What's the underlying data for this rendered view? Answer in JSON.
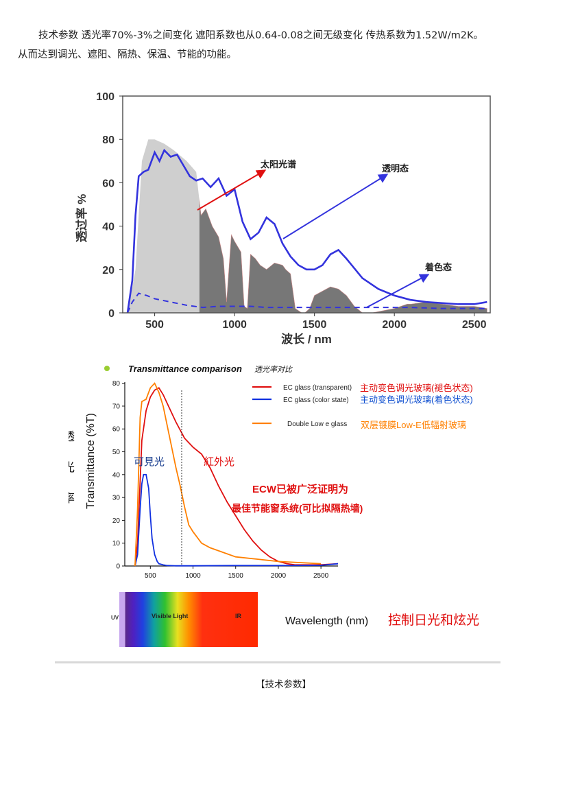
{
  "intro": {
    "line1": "技术参数 透光率70%-3%之间变化 遮阳系数也从0.64-0.08之间无级变化 传热系数为1.52W/m2K。",
    "line2": "从而达到调光、遮阳、隔热、保温、节能的功能。"
  },
  "chart_data": [
    {
      "type": "line",
      "xlabel": "波长 / nm",
      "ylabel": "透过率 %",
      "xlim": [
        300,
        2600
      ],
      "ylim": [
        0,
        100
      ],
      "x_ticks": [
        "500",
        "1000",
        "1500",
        "2000",
        "2500"
      ],
      "y_ticks": [
        "0",
        "20",
        "40",
        "60",
        "80",
        "100"
      ],
      "annotations": [
        "太阳光谱",
        "透明态",
        "着色态"
      ],
      "series": [
        {
          "name": "透明态",
          "color": "#3333dd",
          "x": [
            330,
            360,
            380,
            400,
            430,
            460,
            500,
            530,
            560,
            600,
            640,
            680,
            720,
            760,
            800,
            850,
            900,
            950,
            1000,
            1050,
            1100,
            1150,
            1200,
            1250,
            1300,
            1350,
            1400,
            1450,
            1500,
            1550,
            1600,
            1650,
            1700,
            1800,
            1900,
            2000,
            2100,
            2200,
            2300,
            2400,
            2500,
            2580
          ],
          "y": [
            0,
            15,
            45,
            63,
            65,
            66,
            74,
            70,
            75,
            72,
            73,
            68,
            63,
            61,
            62,
            58,
            62,
            54,
            57,
            42,
            34,
            37,
            44,
            41,
            32,
            26,
            22,
            20,
            20,
            22,
            27,
            29,
            25,
            16,
            11,
            8,
            6,
            5,
            4.5,
            4,
            4,
            5
          ]
        },
        {
          "name": "着色态",
          "color": "#3333dd",
          "x": [
            330,
            360,
            400,
            450,
            500,
            600,
            700,
            800,
            900,
            1000,
            1100,
            1200,
            1300,
            1500,
            1700,
            1900,
            2100,
            2300,
            2580
          ],
          "y": [
            0,
            5,
            9,
            8,
            6.5,
            5,
            3.5,
            2.5,
            3,
            3,
            3,
            2.5,
            2.5,
            2.5,
            2.5,
            2.5,
            2.5,
            2,
            2
          ]
        },
        {
          "name": "太阳光谱",
          "color": "#999999",
          "x": [
            330,
            380,
            420,
            460,
            500,
            560,
            620,
            700,
            760,
            790,
            820,
            860,
            900,
            930,
            950,
            980,
            1000,
            1040,
            1060,
            1080,
            1100,
            1130,
            1160,
            1200,
            1250,
            1300,
            1320,
            1350,
            1380,
            1420,
            1440,
            1470,
            1500,
            1550,
            1600,
            1650,
            1700,
            1750,
            1800,
            1860,
            2000,
            2040,
            2080,
            2100,
            2200,
            2300,
            2400,
            2500,
            2580
          ],
          "y": [
            0,
            20,
            70,
            80,
            80,
            78,
            75,
            70,
            65,
            45,
            48,
            40,
            35,
            25,
            5,
            36,
            33,
            28,
            3,
            2,
            27,
            25,
            22,
            20,
            23,
            22,
            20,
            18,
            2,
            0,
            0,
            2,
            8,
            10,
            12,
            11,
            8,
            3,
            0,
            0,
            2,
            3,
            4,
            4,
            5,
            4,
            3,
            3,
            2
          ]
        }
      ]
    },
    {
      "type": "line",
      "title": "Transmittance comparison",
      "title_cn": "透光率对比",
      "xlabel": "Wavelength (nm)",
      "ylabel": "Transmittance (%T)",
      "ylabel_cn": [
        "透",
        "光",
        "率"
      ],
      "xlim": [
        200,
        2700
      ],
      "ylim": [
        0,
        82
      ],
      "x_ticks": [
        "500",
        "1000",
        "1500",
        "2000",
        "2500"
      ],
      "y_ticks": [
        "0",
        "10",
        "20",
        "30",
        "40",
        "50",
        "60",
        "70",
        "80"
      ],
      "annotations": [
        "可見光",
        "紅外光",
        "ECW已被广泛证明为",
        "最佳节能窗系统(可比拟隔热墙)",
        "控制日光和炫光"
      ],
      "spectrum_labels": [
        "UV",
        "Visible Light",
        "IR"
      ],
      "series": [
        {
          "name": "EC glass (transparent)",
          "name_cn": "主动变色调光玻璃(褪色状态)",
          "color": "#e01010",
          "x": [
            320,
            350,
            400,
            450,
            500,
            550,
            600,
            650,
            700,
            800,
            900,
            950,
            1000,
            1100,
            1200,
            1300,
            1400,
            1500,
            1600,
            1700,
            1800,
            1900,
            2000,
            2100,
            2200,
            2300,
            2400,
            2500,
            2700
          ],
          "y": [
            0,
            10,
            55,
            68,
            74,
            77,
            78,
            75,
            71,
            63,
            56,
            54,
            52,
            49,
            43,
            35,
            28,
            22,
            16,
            11,
            7,
            4,
            2,
            1,
            0.5,
            0.5,
            0.5,
            0.5,
            1
          ]
        },
        {
          "name": "EC glass (color state)",
          "name_cn": "主动变色调光玻璃(着色状态)",
          "color": "#1030e0",
          "x": [
            320,
            350,
            380,
            400,
            420,
            450,
            480,
            500,
            520,
            550,
            580,
            600,
            650,
            700,
            800,
            1000,
            1500,
            2000,
            2500,
            2700
          ],
          "y": [
            0,
            5,
            25,
            36,
            40,
            40,
            34,
            22,
            12,
            5,
            2,
            1,
            0.5,
            0.2,
            0.1,
            0.1,
            0.2,
            0.2,
            0.3,
            1
          ]
        },
        {
          "name": "Double Low e glass",
          "name_cn": "双层镀膜Low-E低辐射玻璃",
          "color": "#ff8000",
          "x": [
            320,
            350,
            380,
            400,
            450,
            500,
            550,
            600,
            650,
            700,
            750,
            800,
            850,
            900,
            950,
            1000,
            1100,
            1200,
            1500,
            2000,
            2500
          ],
          "y": [
            0,
            25,
            65,
            72,
            73,
            78,
            80,
            76,
            70,
            61,
            52,
            43,
            35,
            26,
            18,
            15,
            10,
            8,
            4,
            2,
            1
          ]
        }
      ]
    }
  ],
  "caption": "【技术参数】"
}
